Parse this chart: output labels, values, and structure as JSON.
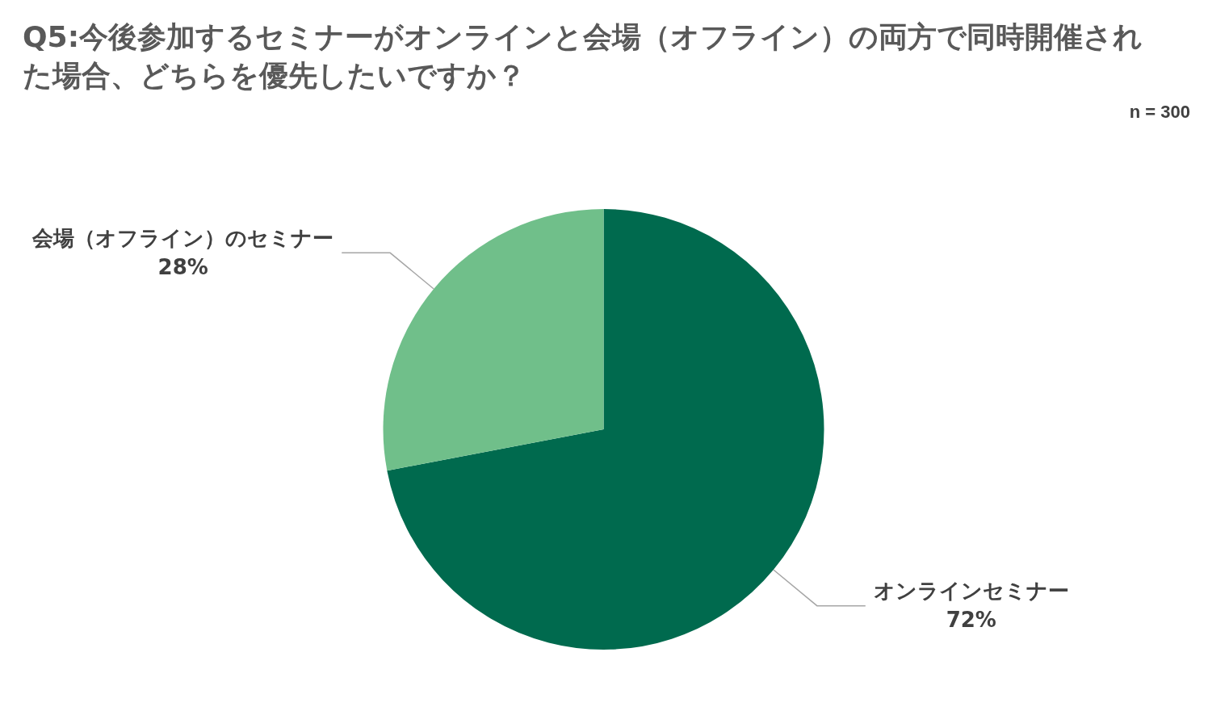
{
  "chart_data": {
    "type": "pie",
    "title": "Q5:今後参加するセミナーがオンラインと会場（オフライン）の両方で同時開催された場合、どちらを優先したいですか？",
    "categories": [
      "オンラインセミナー",
      "会場（オフライン）のセミナー"
    ],
    "values": [
      72,
      28
    ],
    "colors": [
      "#006a4e",
      "#70bf8a"
    ],
    "value_labels": [
      "72%",
      "28%"
    ],
    "annotations": [
      "n = 300"
    ],
    "legend": false
  }
}
